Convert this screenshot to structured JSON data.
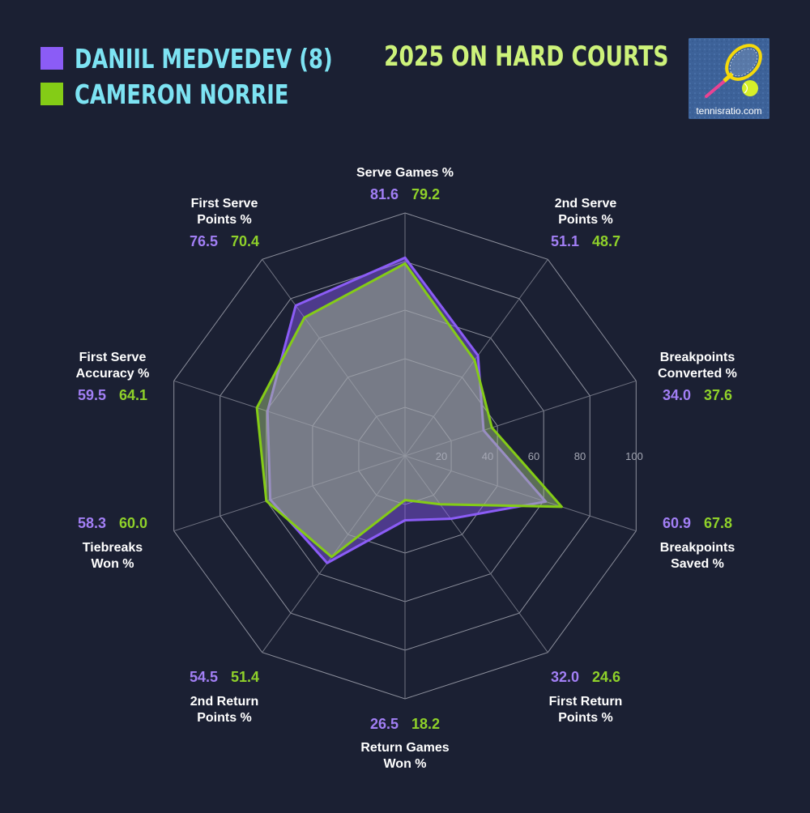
{
  "header": {
    "title": "2025 ON HARD COURTS",
    "logo_text": "tennisratio.com"
  },
  "legend": [
    {
      "name": "DANIIL MEDVEDEV (8)",
      "color": "#8b5cf6"
    },
    {
      "name": "CAMERON NORRIE",
      "color": "#84cc16"
    }
  ],
  "chart_data": {
    "type": "radar",
    "rlim": [
      0,
      100
    ],
    "ticks": [
      "20",
      "40",
      "60",
      "80",
      "100"
    ],
    "grid": true,
    "categories": [
      {
        "lines": [
          "Serve Games %"
        ]
      },
      {
        "lines": [
          "2nd Serve",
          "Points %"
        ]
      },
      {
        "lines": [
          "Breakpoints",
          "Converted %"
        ]
      },
      {
        "lines": [
          "Breakpoints",
          "Saved %"
        ]
      },
      {
        "lines": [
          "First Return",
          "Points %"
        ]
      },
      {
        "lines": [
          "Return Games",
          "Won %"
        ]
      },
      {
        "lines": [
          "2nd Return",
          "Points %"
        ]
      },
      {
        "lines": [
          "Tiebreaks",
          "Won %"
        ]
      },
      {
        "lines": [
          "First Serve",
          "Accuracy %"
        ]
      },
      {
        "lines": [
          "First Serve",
          "Points %"
        ]
      }
    ],
    "series": [
      {
        "name": "DANIIL MEDVEDEV (8)",
        "color": "#8b5cf6",
        "text_color": "#a27ff5",
        "values": [
          81.6,
          51.1,
          34.0,
          60.9,
          32.0,
          26.5,
          54.5,
          58.3,
          59.5,
          76.5
        ],
        "labels": [
          "81.6",
          "51.1",
          "34.0",
          "60.9",
          "32.0",
          "26.5",
          "54.5",
          "58.3",
          "59.5",
          "76.5"
        ]
      },
      {
        "name": "CAMERON NORRIE",
        "color": "#84cc16",
        "text_color": "#8fd12a",
        "values": [
          79.2,
          48.7,
          37.6,
          67.8,
          24.6,
          18.2,
          51.4,
          60.0,
          64.1,
          70.4
        ],
        "labels": [
          "79.2",
          "48.7",
          "37.6",
          "67.8",
          "24.6",
          "18.2",
          "51.4",
          "60.0",
          "64.1",
          "70.4"
        ]
      }
    ]
  }
}
